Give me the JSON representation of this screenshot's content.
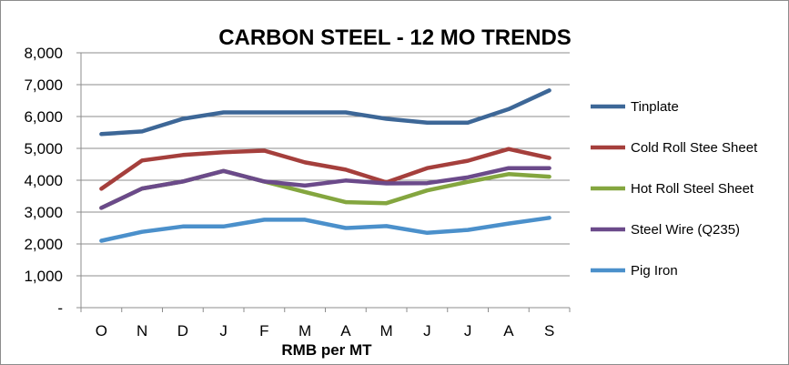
{
  "chart_data": {
    "type": "line",
    "title": "CARBON STEEL - 12 MO TRENDS",
    "xlabel": "RMB per MT",
    "ylabel": "",
    "categories": [
      "O",
      "N",
      "D",
      "J",
      "F",
      "M",
      "A",
      "M",
      "J",
      "J",
      "A",
      "S"
    ],
    "ylim": [
      0,
      8000
    ],
    "yticks": [
      0,
      1000,
      2000,
      3000,
      4000,
      5000,
      6000,
      7000,
      8000
    ],
    "ytick_labels": [
      "-",
      "1,000",
      "2,000",
      "3,000",
      "4,000",
      "5,000",
      "6,000",
      "7,000",
      "8,000"
    ],
    "grid": true,
    "legend_position": "right",
    "series": [
      {
        "name": "Tinplate",
        "color": "#3d6797",
        "values": [
          5450,
          5530,
          5930,
          6130,
          6130,
          6130,
          6130,
          5930,
          5810,
          5810,
          6230,
          6820
        ]
      },
      {
        "name": "Cold Roll Stee Sheet",
        "color": "#a53f3c",
        "values": [
          3730,
          4620,
          4790,
          4880,
          4930,
          4560,
          4330,
          3930,
          4380,
          4610,
          4980,
          4700
        ]
      },
      {
        "name": "Hot Roll Steel Sheet",
        "color": "#84a63f",
        "values": [
          3130,
          3740,
          3960,
          4290,
          3960,
          3630,
          3310,
          3280,
          3680,
          3950,
          4190,
          4110
        ]
      },
      {
        "name": "Steel Wire (Q235)",
        "color": "#6b4a8a",
        "values": [
          3130,
          3740,
          3960,
          4290,
          3960,
          3830,
          3990,
          3900,
          3910,
          4090,
          4380,
          4380
        ]
      },
      {
        "name": "Pig Iron",
        "color": "#4b90cb",
        "values": [
          2100,
          2380,
          2550,
          2550,
          2760,
          2760,
          2500,
          2560,
          2350,
          2440,
          2640,
          2820
        ]
      }
    ]
  }
}
